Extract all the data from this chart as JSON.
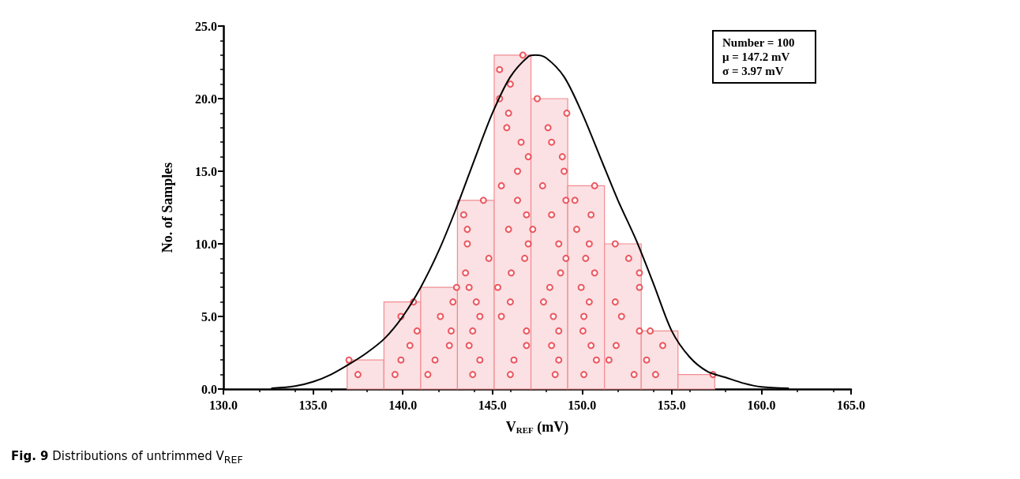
{
  "chart_data": {
    "type": "histogram",
    "xlabel": "V$_{REF}$ (mV)",
    "ylabel": "No. of Samples",
    "bins": [
      136.9,
      138.95,
      141.0,
      143.05,
      145.1,
      147.15,
      149.2,
      151.25,
      153.3,
      155.35,
      157.4
    ],
    "values": [
      2,
      6,
      7,
      13,
      23,
      20,
      14,
      10,
      4,
      1
    ],
    "color": "#fbe1e3",
    "series": [
      {
        "type": "scatter",
        "color": "#e8323c",
        "marker": "circle",
        "x": [
          137.0,
          137.5,
          139.57,
          139.9,
          140.4,
          140.8,
          139.9,
          140.6,
          141.4,
          141.8,
          142.6,
          142.7,
          142.1,
          142.8,
          143.0,
          143.9,
          144.3,
          143.7,
          143.9,
          144.3,
          144.1,
          143.7,
          143.5,
          144.8,
          143.6,
          143.6,
          143.4,
          144.5,
          146.0,
          146.2,
          146.9,
          146.9,
          145.5,
          146.0,
          145.3,
          146.05,
          146.8,
          147.0,
          145.9,
          146.9,
          146.4,
          145.5,
          146.4,
          147.0,
          146.6,
          145.8,
          145.9,
          145.4,
          146.0,
          145.4,
          146.7,
          148.5,
          148.7,
          148.3,
          148.7,
          148.4,
          147.85,
          148.2,
          148.8,
          149.1,
          148.7,
          147.25,
          148.3,
          149.1,
          147.8,
          149.0,
          148.9,
          148.3,
          148.1,
          149.15,
          147.5,
          150.1,
          150.8,
          150.5,
          150.05,
          150.1,
          150.4,
          149.95,
          150.7,
          150.2,
          150.4,
          149.7,
          150.5,
          149.6,
          150.7,
          152.9,
          151.5,
          151.9,
          153.2,
          152.2,
          151.85,
          153.2,
          153.2,
          152.6,
          151.85,
          154.1,
          153.6,
          154.5,
          153.8,
          157.3
        ],
        "values": [
          2,
          1,
          1,
          2,
          3,
          4,
          5,
          6,
          1,
          2,
          3,
          4,
          5,
          6,
          7,
          1,
          2,
          3,
          4,
          5,
          6,
          7,
          8,
          9,
          10,
          11,
          12,
          13,
          1,
          2,
          3,
          4,
          5,
          6,
          7,
          8,
          9,
          10,
          11,
          12,
          13,
          14,
          15,
          16,
          17,
          18,
          19,
          20,
          21,
          22,
          23,
          1,
          2,
          3,
          4,
          5,
          6,
          7,
          8,
          9,
          10,
          11,
          12,
          13,
          14,
          15,
          16,
          17,
          18,
          19,
          20,
          1,
          2,
          3,
          4,
          5,
          6,
          7,
          8,
          9,
          10,
          11,
          12,
          13,
          14,
          1,
          2,
          3,
          4,
          5,
          6,
          7,
          8,
          9,
          10,
          1,
          2,
          3,
          4,
          1
        ]
      },
      {
        "type": "line",
        "color": "#000000",
        "marker": "none",
        "line_style": "solid",
        "x": [
          132.7,
          134,
          135,
          136,
          137,
          138,
          139,
          140,
          141,
          142,
          143,
          144,
          145,
          146,
          147,
          147.4,
          148,
          149,
          150,
          151,
          152,
          153,
          154,
          155,
          156,
          157,
          158,
          159,
          160,
          161.5
        ],
        "values": [
          0.05,
          0.2,
          0.5,
          1.0,
          1.7,
          2.5,
          3.5,
          5.0,
          7.0,
          9.5,
          12.5,
          15.8,
          19.0,
          21.5,
          22.9,
          23.0,
          22.8,
          21.5,
          19.0,
          16.0,
          13.0,
          10.3,
          7.2,
          4.0,
          2.2,
          1.2,
          0.8,
          0.4,
          0.15,
          0.05
        ]
      }
    ],
    "xlim": [
      130,
      165
    ],
    "xticks": [
      {
        "value": 130,
        "label": "130.0"
      },
      {
        "value": 135,
        "label": "135.0"
      },
      {
        "value": 140,
        "label": "140.0"
      },
      {
        "value": 145,
        "label": "145.0"
      },
      {
        "value": 150,
        "label": "150.0"
      },
      {
        "value": 155,
        "label": "155.0"
      },
      {
        "value": 160,
        "label": "160.0"
      },
      {
        "value": 165,
        "label": "165.0"
      }
    ],
    "ylim": [
      0,
      25
    ],
    "yticks": [
      {
        "value": 0,
        "label": "0.0"
      },
      {
        "value": 5,
        "label": "5.0"
      },
      {
        "value": 10,
        "label": "10.0"
      },
      {
        "value": 15,
        "label": "15.0"
      },
      {
        "value": 20,
        "label": "20.0"
      },
      {
        "value": 25,
        "label": "25.0"
      }
    ],
    "grid": false,
    "legend": false,
    "annotations": [
      "Number = 100",
      "μ = 147.2 mV",
      "σ = 3.97 mV",
      "Fig. 9 Distributions of untrimmed V$_{REF}$"
    ]
  }
}
